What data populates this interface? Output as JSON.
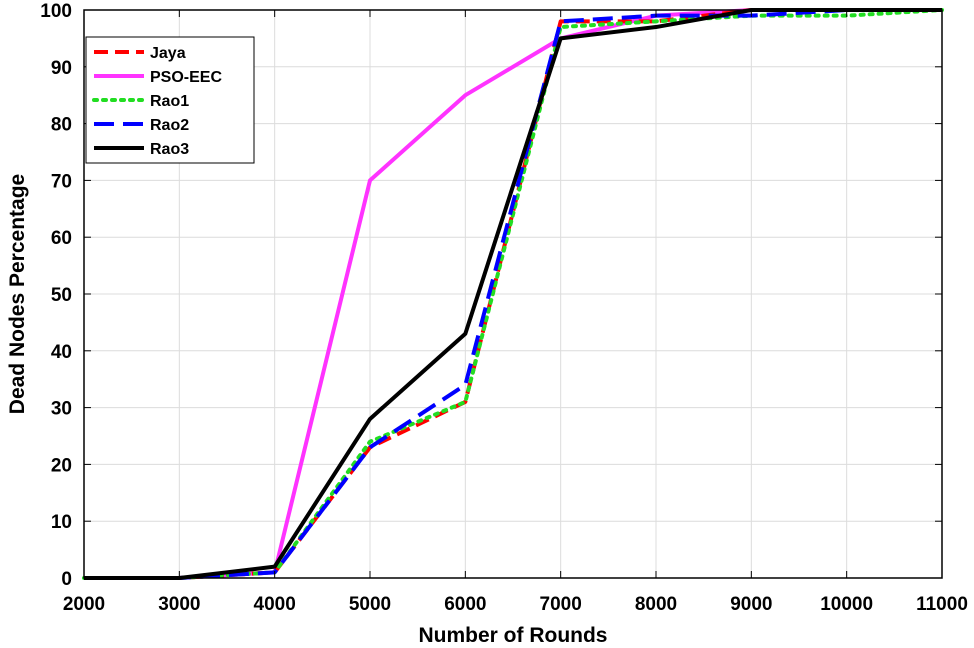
{
  "chart_data": {
    "type": "line",
    "title": "",
    "xlabel": "Number of Rounds",
    "ylabel": "Dead Nodes Percentage",
    "xlim": [
      2000,
      11000
    ],
    "ylim": [
      0,
      100
    ],
    "x_ticks": [
      2000,
      3000,
      4000,
      5000,
      6000,
      7000,
      8000,
      9000,
      10000,
      11000
    ],
    "y_ticks": [
      0,
      10,
      20,
      30,
      40,
      50,
      60,
      70,
      80,
      90,
      100
    ],
    "grid": true,
    "legend_position": "top-left",
    "x": [
      2000,
      3000,
      4000,
      5000,
      6000,
      7000,
      8000,
      9000,
      10000,
      11000
    ],
    "series": [
      {
        "name": "Jaya",
        "color": "#ff0000",
        "dash": "dashed",
        "values": [
          0,
          0,
          1,
          23,
          31,
          98,
          98,
          100,
          100,
          100
        ]
      },
      {
        "name": "PSO-EEC",
        "color": "#ff33ff",
        "dash": "solid",
        "values": [
          0,
          0,
          1,
          70,
          85,
          95,
          99,
          100,
          100,
          100
        ]
      },
      {
        "name": "Rao1",
        "color": "#22dd22",
        "dash": "dotted",
        "values": [
          0,
          0,
          1,
          24,
          31,
          97,
          98,
          99,
          99,
          100
        ]
      },
      {
        "name": "Rao2",
        "color": "#0000ff",
        "dash": "longdash",
        "values": [
          0,
          0,
          1,
          23,
          34,
          98,
          99,
          99,
          100,
          100
        ]
      },
      {
        "name": "Rao3",
        "color": "#000000",
        "dash": "solid",
        "values": [
          0,
          0,
          2,
          28,
          43,
          95,
          97,
          100,
          100,
          100
        ]
      }
    ]
  }
}
